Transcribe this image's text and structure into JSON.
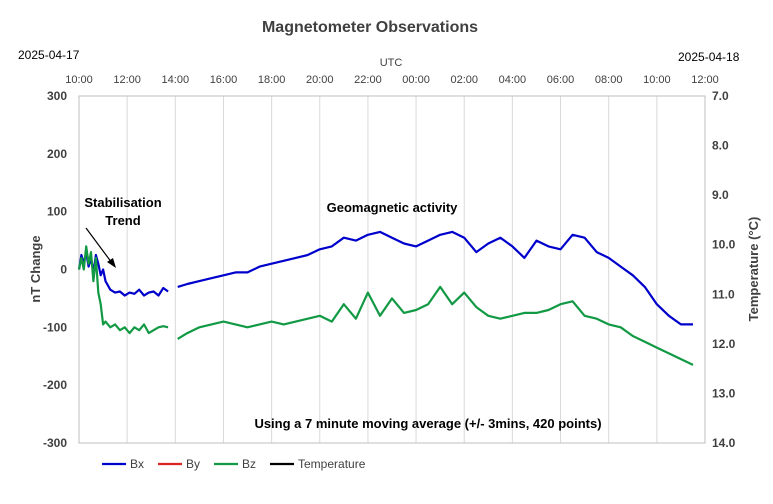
{
  "chart_data": {
    "type": "line",
    "title": "Magnetometer Observations",
    "date_start": "2025-04-17",
    "date_end": "2025-04-18",
    "x_axis_label": "UTC",
    "x_ticks": [
      "10:00",
      "12:00",
      "14:00",
      "16:00",
      "18:00",
      "20:00",
      "22:00",
      "00:00",
      "02:00",
      "04:00",
      "06:00",
      "08:00",
      "10:00",
      "12:00"
    ],
    "x_range_hours": [
      10,
      36
    ],
    "ylabel_left": "nT Change",
    "ylim_left": [
      -300,
      300
    ],
    "y_ticks_left": [
      "300",
      "200",
      "100",
      "0",
      "-100",
      "-200",
      "-300"
    ],
    "ylabel_right": "Temperature (°C)",
    "ylim_right": [
      7.0,
      14.0
    ],
    "y_right_inverted": true,
    "y_ticks_right": [
      "7.0",
      "8.0",
      "9.0",
      "10.0",
      "11.0",
      "12.0",
      "13.0",
      "14.0"
    ],
    "grid": "vertical",
    "annotations": {
      "stabilisation_line1": "Stabilisation",
      "stabilisation_line2": "Trend",
      "geomagnetic": "Geomagnetic activity",
      "moving_average": "Using a 7 minute moving average  (+/- 3mins, 420 points)"
    },
    "legend_position": "bottom-left",
    "series": [
      {
        "name": "Bx",
        "color": "#0000cc",
        "segments": [
          {
            "x": [
              10.0,
              10.1,
              10.2,
              10.3,
              10.4,
              10.5,
              10.6,
              10.7,
              10.8,
              10.9,
              11.0,
              11.1,
              11.3,
              11.5,
              11.7,
              11.9,
              12.1,
              12.3,
              12.5,
              12.7,
              12.9,
              13.1,
              13.3,
              13.5,
              13.7
            ],
            "y": [
              0,
              25,
              10,
              30,
              5,
              20,
              -5,
              25,
              10,
              -10,
              0,
              -20,
              -35,
              -40,
              -38,
              -45,
              -40,
              -42,
              -35,
              -45,
              -40,
              -38,
              -45,
              -32,
              -38
            ]
          },
          {
            "x": [
              14.1,
              14.5,
              15.0,
              15.5,
              16.0,
              16.5,
              17.0,
              17.5,
              18.0,
              18.5,
              19.0,
              19.5,
              20.0,
              20.5,
              21.0,
              21.5,
              22.0,
              22.5,
              23.0,
              23.5,
              24.0,
              24.5,
              25.0,
              25.5,
              26.0,
              26.5,
              27.0,
              27.5,
              28.0,
              28.5,
              29.0,
              29.5,
              30.0,
              30.5,
              31.0,
              31.5,
              32.0,
              32.5,
              33.0,
              33.5,
              34.0,
              34.5,
              35.0,
              35.5
            ],
            "y": [
              -30,
              -25,
              -20,
              -15,
              -10,
              -5,
              -5,
              5,
              10,
              15,
              20,
              25,
              35,
              40,
              55,
              50,
              60,
              65,
              55,
              45,
              40,
              50,
              60,
              65,
              55,
              30,
              45,
              55,
              40,
              20,
              50,
              40,
              35,
              60,
              55,
              30,
              20,
              5,
              -10,
              -30,
              -60,
              -80,
              -95,
              -95
            ]
          }
        ]
      },
      {
        "name": "By",
        "color": "#dd2222",
        "segments": []
      },
      {
        "name": "Bz",
        "color": "#119944",
        "segments": [
          {
            "x": [
              10.0,
              10.1,
              10.2,
              10.3,
              10.4,
              10.5,
              10.6,
              10.7,
              10.8,
              10.9,
              11.0,
              11.1,
              11.3,
              11.5,
              11.7,
              11.9,
              12.1,
              12.3,
              12.5,
              12.7,
              12.9,
              13.1,
              13.3,
              13.5,
              13.7
            ],
            "y": [
              0,
              20,
              0,
              40,
              10,
              30,
              -20,
              20,
              -40,
              -60,
              -95,
              -90,
              -100,
              -95,
              -105,
              -100,
              -110,
              -100,
              -105,
              -95,
              -110,
              -105,
              -100,
              -98,
              -100
            ]
          },
          {
            "x": [
              14.1,
              14.5,
              15.0,
              15.5,
              16.0,
              16.5,
              17.0,
              17.5,
              18.0,
              18.5,
              19.0,
              19.5,
              20.0,
              20.5,
              21.0,
              21.5,
              22.0,
              22.5,
              23.0,
              23.5,
              24.0,
              24.5,
              25.0,
              25.5,
              26.0,
              26.5,
              27.0,
              27.5,
              28.0,
              28.5,
              29.0,
              29.5,
              30.0,
              30.5,
              31.0,
              31.5,
              32.0,
              32.5,
              33.0,
              33.5,
              34.0,
              34.5,
              35.0,
              35.5
            ],
            "y": [
              -120,
              -110,
              -100,
              -95,
              -90,
              -95,
              -100,
              -95,
              -90,
              -95,
              -90,
              -85,
              -80,
              -90,
              -60,
              -85,
              -40,
              -80,
              -50,
              -75,
              -70,
              -60,
              -30,
              -60,
              -40,
              -65,
              -80,
              -85,
              -80,
              -75,
              -75,
              -70,
              -60,
              -55,
              -80,
              -85,
              -95,
              -100,
              -115,
              -125,
              -135,
              -145,
              -155,
              -165
            ]
          }
        ]
      },
      {
        "name": "Temperature",
        "color": "#000000",
        "segments": []
      }
    ]
  }
}
